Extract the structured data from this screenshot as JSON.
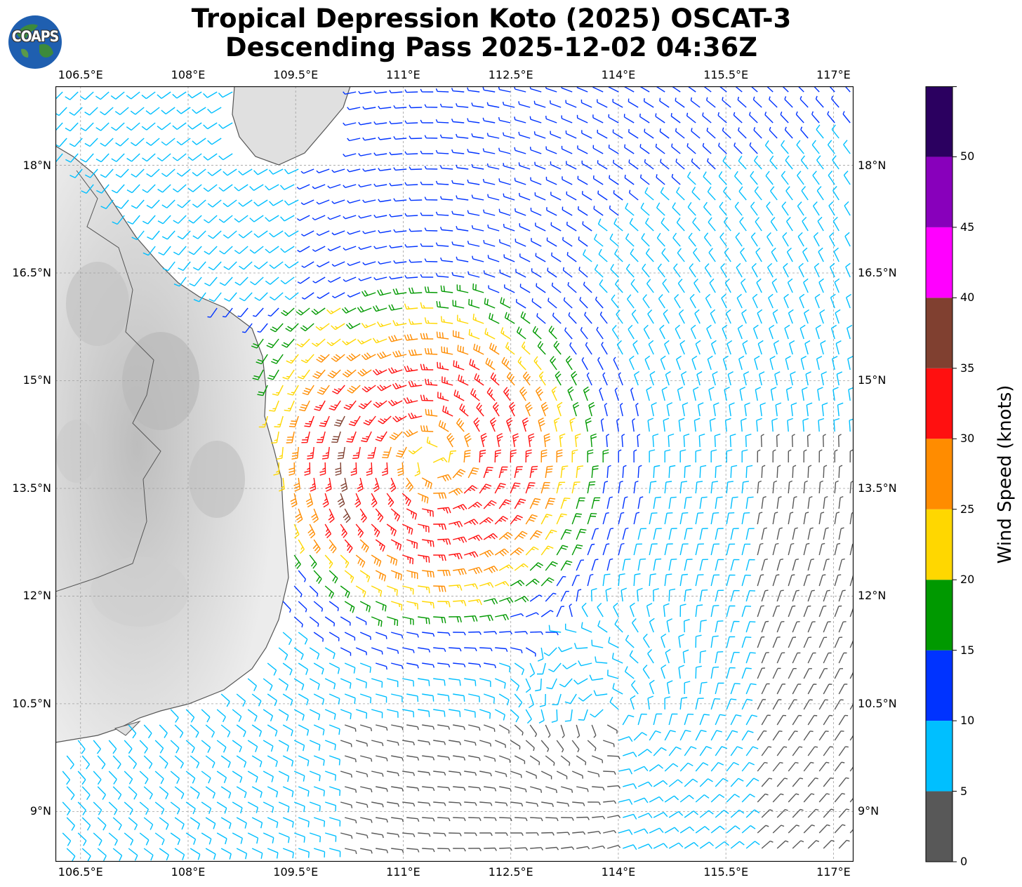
{
  "title": {
    "line1": "Tropical Depression Koto (2025) OSCAT-3",
    "line2": "Descending Pass 2025-12-02 04:36Z"
  },
  "logo": {
    "text": "COAPS",
    "icon": "globe-icon"
  },
  "map": {
    "lon_ticks": [
      "106.5°E",
      "108°E",
      "109.5°E",
      "111°E",
      "112.5°E",
      "114°E",
      "115.5°E",
      "117°E"
    ],
    "lat_ticks": [
      "18°N",
      "16.5°N",
      "15°N",
      "13.5°N",
      "12°N",
      "10.5°N",
      "9°N"
    ],
    "lon_values": [
      106.5,
      108,
      109.5,
      111,
      112.5,
      114,
      115.5,
      117
    ],
    "lat_values": [
      18,
      16.5,
      15,
      13.5,
      12,
      10.5,
      9
    ],
    "extent": {
      "lon": [
        106.15,
        117.28
      ],
      "lat": [
        8.3,
        19.1
      ]
    },
    "storm_center": {
      "lon": 111.4,
      "lat": 13.9
    },
    "land_color": "#e6e6e6",
    "coast_color": "#555555"
  },
  "colorbar": {
    "title": "Wind Speed (knots)",
    "tick_labels": [
      "0",
      "5",
      "10",
      "15",
      "20",
      "25",
      "30",
      "35",
      "40",
      "45",
      "50"
    ],
    "bins": [
      {
        "min": 0,
        "max": 5,
        "color": "#585858"
      },
      {
        "min": 5,
        "max": 10,
        "color": "#00bfff"
      },
      {
        "min": 10,
        "max": 15,
        "color": "#0033ff"
      },
      {
        "min": 15,
        "max": 20,
        "color": "#009900"
      },
      {
        "min": 20,
        "max": 25,
        "color": "#ffd700"
      },
      {
        "min": 25,
        "max": 30,
        "color": "#ff8c00"
      },
      {
        "min": 30,
        "max": 35,
        "color": "#ff1010"
      },
      {
        "min": 35,
        "max": 40,
        "color": "#804030"
      },
      {
        "min": 40,
        "max": 45,
        "color": "#ff00ff"
      },
      {
        "min": 45,
        "max": 50,
        "color": "#8800bb"
      },
      {
        "min": 50,
        "max": 55,
        "color": "#2b0060"
      }
    ]
  }
}
